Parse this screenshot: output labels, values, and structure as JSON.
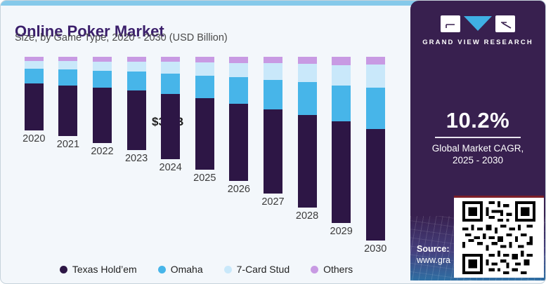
{
  "header": {
    "title": "Online Poker Market",
    "subtitle": "Size, by Game Type, 2020 - 2030 (USD Billion)"
  },
  "chart_data": {
    "type": "bar",
    "stacked": true,
    "title": "Online Poker Market",
    "subtitle": "Size, by Game Type, 2020 - 2030 (USD Billion)",
    "unit": "USD Billion",
    "categories": [
      "2020",
      "2021",
      "2022",
      "2023",
      "2024",
      "2025",
      "2026",
      "2027",
      "2028",
      "2029",
      "2030"
    ],
    "series": [
      {
        "key": "texas-holdem",
        "name": "Texas Hold’em",
        "color": "#2d1645",
        "values": [
          1.81,
          1.94,
          2.1,
          2.28,
          2.48,
          2.72,
          2.95,
          3.22,
          3.54,
          3.88,
          4.25
        ]
      },
      {
        "key": "omaha",
        "name": "Omaha",
        "color": "#47b5e9",
        "values": [
          0.56,
          0.59,
          0.64,
          0.71,
          0.78,
          0.84,
          1.0,
          1.1,
          1.25,
          1.37,
          1.57
        ]
      },
      {
        "key": "7-card-stud",
        "name": "7-Card Stud",
        "color": "#c9e8fa",
        "values": [
          0.29,
          0.32,
          0.36,
          0.37,
          0.45,
          0.52,
          0.54,
          0.64,
          0.69,
          0.75,
          0.88
        ]
      },
      {
        "key": "others",
        "name": "Others",
        "color": "#c89ae3",
        "values": [
          0.15,
          0.17,
          0.18,
          0.19,
          0.19,
          0.21,
          0.24,
          0.25,
          0.27,
          0.33,
          0.3
        ]
      }
    ],
    "annotation": {
      "text": "$3.9B",
      "category": "2024"
    },
    "legend_position": "bottom",
    "grid": false
  },
  "panel": {
    "brand": "GRAND VIEW RESEARCH",
    "cagr_value": "10.2%",
    "cagr_label_line1": "Global Market CAGR,",
    "cagr_label_line2": "2025 - 2030",
    "source_label": "Source:",
    "source_url": "www.gra",
    "bg_color": "#38204f",
    "triangle_color": "#3fb0e4"
  },
  "colors": {
    "card_bg": "#f3f7fb",
    "top_strip": "#85c9ea",
    "title_text": "#3b1f6b"
  }
}
